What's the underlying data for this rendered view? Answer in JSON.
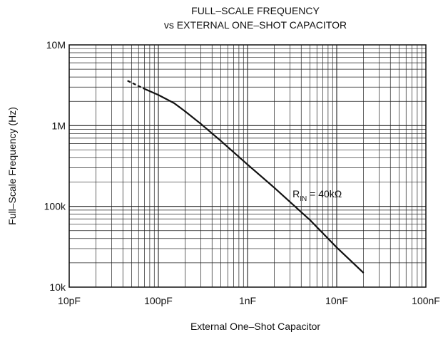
{
  "chart_data": {
    "type": "line",
    "title": [
      "FULL–SCALE FREQUENCY",
      "vs EXTERNAL ONE–SHOT CAPACITOR"
    ],
    "xlabel": "External One–Shot Capacitor",
    "ylabel": "Full–Scale Frequency (Hz)",
    "x_scale": "log",
    "y_scale": "log",
    "x_unit": "F",
    "y_unit": "Hz",
    "xlim": [
      1e-11,
      1e-07
    ],
    "ylim": [
      10000,
      10000000
    ],
    "x_ticks": [
      {
        "value": 1e-11,
        "label": "10pF"
      },
      {
        "value": 1e-10,
        "label": "100pF"
      },
      {
        "value": 1e-09,
        "label": "1nF"
      },
      {
        "value": 1e-08,
        "label": "10nF"
      },
      {
        "value": 1e-07,
        "label": "100nF"
      }
    ],
    "y_ticks": [
      {
        "value": 10000,
        "label": "10k"
      },
      {
        "value": 100000,
        "label": "100k"
      },
      {
        "value": 1000000,
        "label": "1M"
      },
      {
        "value": 10000000,
        "label": "10M"
      }
    ],
    "grid": true,
    "series": [
      {
        "segments": [
          {
            "style": "dashed",
            "x": [
              4.5e-11,
              7e-11
            ],
            "y": [
              3600000,
              2850000
            ]
          },
          {
            "style": "solid",
            "x": [
              7e-11,
              1e-10,
              1.5e-10,
              2e-10,
              3e-10,
              5e-10,
              1e-09,
              2e-09,
              5e-09,
              1e-08,
              2e-08
            ],
            "y": [
              2850000,
              2400000,
              1900000,
              1500000,
              1050000,
              650000,
              330000,
              170000,
              68000,
              31000,
              15000
            ]
          }
        ]
      }
    ],
    "annotations": [
      {
        "main": "R",
        "sub": "IN",
        "rest": " = 40kΩ",
        "x": 3.2e-09,
        "y": 130000
      }
    ]
  }
}
